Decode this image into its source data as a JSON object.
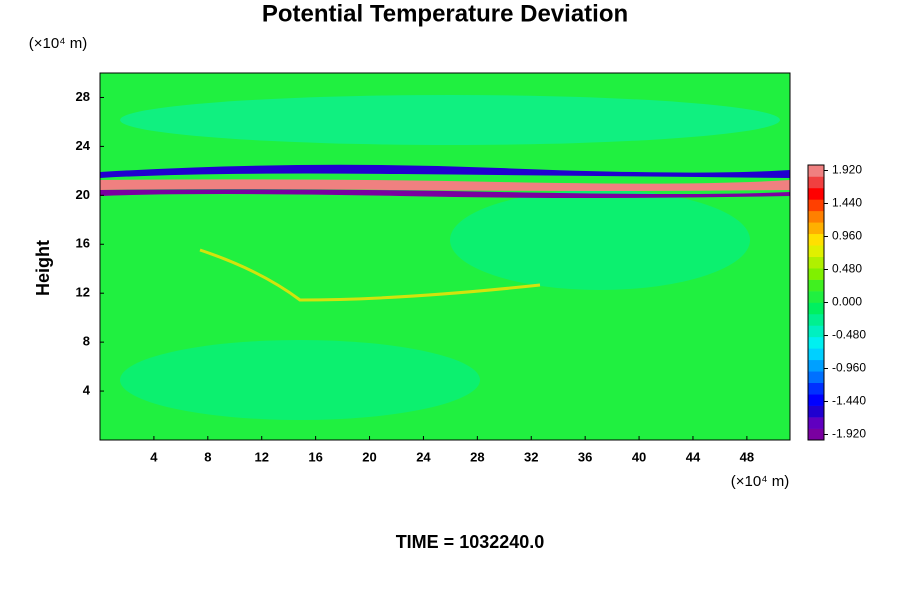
{
  "chart_data": {
    "type": "contour",
    "title": "Potential Temperature Deviation",
    "ylabel": "Height",
    "yunit": "(×10⁴ m)",
    "xunit": "(×10⁴ m)",
    "footer": "TIME = 1032240.0",
    "xlim": [
      0,
      51.2
    ],
    "xticks": [
      4,
      8,
      12,
      16,
      20,
      24,
      28,
      32,
      36,
      40,
      44,
      48
    ],
    "ylim": [
      0,
      30
    ],
    "yticks": [
      4,
      8,
      12,
      16,
      20,
      24,
      28
    ],
    "clim": [
      -2.0,
      2.0
    ],
    "cticks": [
      {
        "value": 1.92,
        "label": "1.920"
      },
      {
        "value": 1.44,
        "label": "1.440"
      },
      {
        "value": 0.96,
        "label": "0.960"
      },
      {
        "value": 0.48,
        "label": "0.480"
      },
      {
        "value": 0,
        "label": "0.000"
      },
      {
        "value": -0.48,
        "label": "-0.480"
      },
      {
        "value": -0.96,
        "label": "-0.960"
      },
      {
        "value": -1.44,
        "label": "-1.440"
      },
      {
        "value": -1.92,
        "label": "-1.920"
      }
    ],
    "colors": [
      "#7a00a0",
      "#6000c0",
      "#2000d0",
      "#0000ff",
      "#0030ff",
      "#0070ff",
      "#00a0ff",
      "#00d0ff",
      "#00f0f0",
      "#00f0c0",
      "#00f090",
      "#00f060",
      "#20f040",
      "#40f020",
      "#80f000",
      "#b0f000",
      "#e0f000",
      "#ffe000",
      "#ffb000",
      "#ff8000",
      "#ff4000",
      "#ff0000",
      "#f04040",
      "#f08080"
    ]
  }
}
